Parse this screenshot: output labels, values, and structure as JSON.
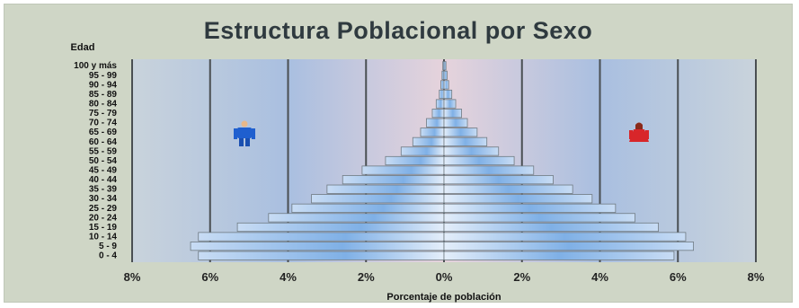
{
  "chart_data": {
    "type": "bar",
    "orientation": "horizontal",
    "title": "Estructura Poblacional por Sexo",
    "ylabel": "Edad",
    "xlabel": "Porcentaje de población",
    "categories": [
      "0 - 4",
      "5 - 9",
      "10 - 14",
      "15 - 19",
      "20 - 24",
      "25 - 29",
      "30 - 34",
      "35 - 39",
      "40 - 44",
      "45 - 49",
      "50 - 54",
      "55 - 59",
      "60 - 64",
      "65 - 69",
      "70 - 74",
      "75 - 79",
      "80 - 84",
      "85 - 89",
      "90 - 94",
      "95 - 99",
      "100 y más"
    ],
    "series": [
      {
        "side": "left",
        "color": "#4a90d8",
        "values": [
          6.3,
          6.5,
          6.3,
          5.3,
          4.5,
          3.9,
          3.4,
          3.0,
          2.6,
          2.1,
          1.5,
          1.1,
          0.8,
          0.6,
          0.45,
          0.3,
          0.2,
          0.12,
          0.08,
          0.05,
          0.03
        ]
      },
      {
        "side": "right",
        "color": "#d84a4a",
        "values": [
          5.9,
          6.4,
          6.2,
          5.5,
          4.9,
          4.4,
          3.8,
          3.3,
          2.8,
          2.3,
          1.8,
          1.4,
          1.1,
          0.85,
          0.6,
          0.45,
          0.3,
          0.2,
          0.12,
          0.08,
          0.05
        ]
      }
    ],
    "xlim": [
      -8,
      8
    ],
    "xticks": [
      "8%",
      "6%",
      "4%",
      "2%",
      "0%",
      "2%",
      "4%",
      "6%",
      "8%"
    ],
    "grid": true,
    "icons": [
      "male-figure-icon",
      "female-figure-icon"
    ]
  }
}
